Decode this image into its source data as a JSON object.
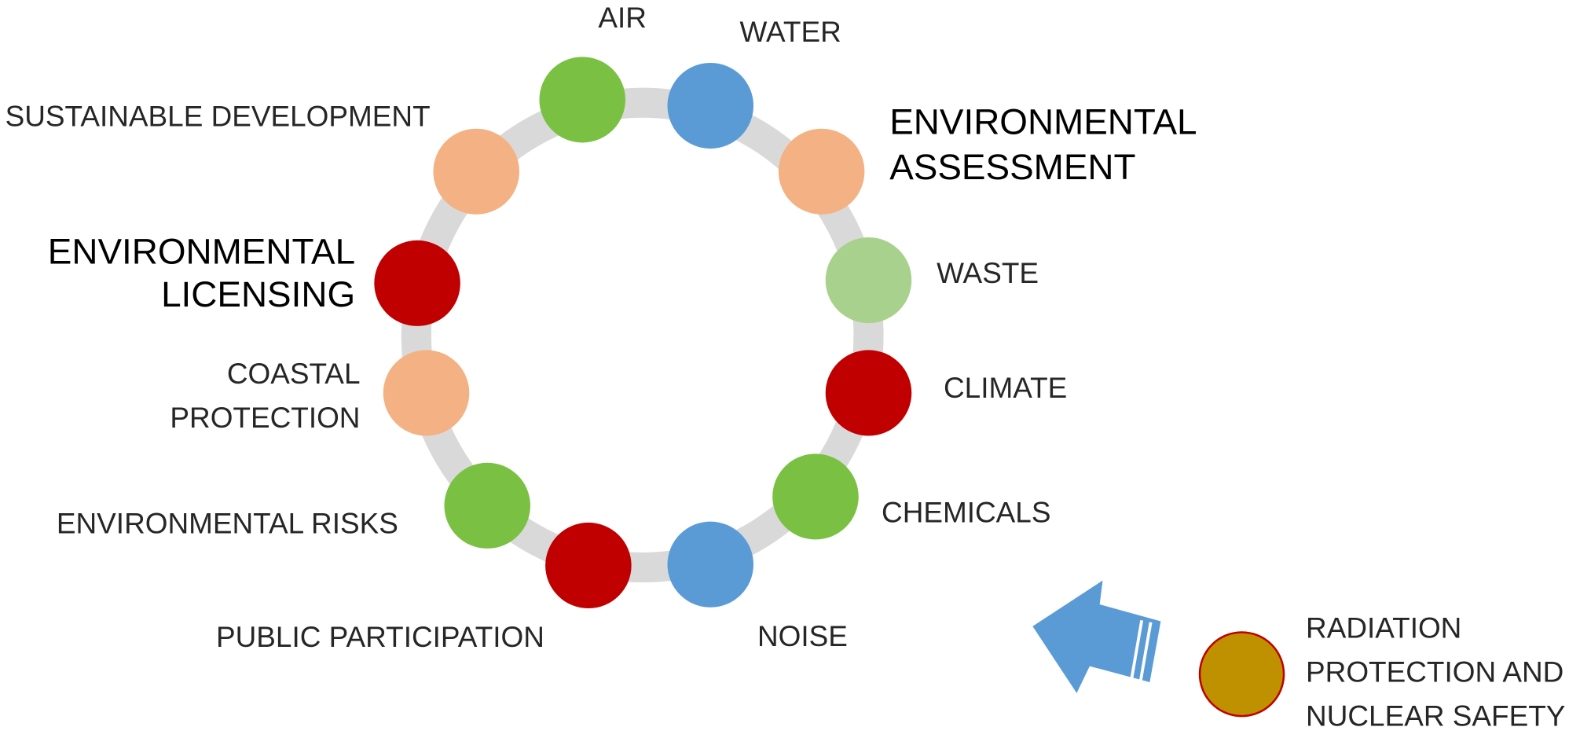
{
  "nodes": [
    {
      "lines": [
        "AIR"
      ],
      "color": "#7ac143"
    },
    {
      "lines": [
        "WATER"
      ],
      "color": "#5b9bd5"
    },
    {
      "lines": [
        "ENVIRONMENTAL",
        "ASSESSMENT"
      ],
      "color": "#f4b183"
    },
    {
      "lines": [
        "WASTE"
      ],
      "color": "#a9d18e"
    },
    {
      "lines": [
        "CLIMATE"
      ],
      "color": "#c00000"
    },
    {
      "lines": [
        "CHEMICALS"
      ],
      "color": "#7ac143"
    },
    {
      "lines": [
        "NOISE"
      ],
      "color": "#5b9bd5"
    },
    {
      "lines": [
        "PUBLIC PARTICIPATION"
      ],
      "color": "#c00000"
    },
    {
      "lines": [
        "ENVIRONMENTAL RISKS"
      ],
      "color": "#7ac143"
    },
    {
      "lines": [
        "COASTAL",
        "PROTECTION"
      ],
      "color": "#f4b183"
    },
    {
      "lines": [
        "ENVIRONMENTAL",
        "LICENSING"
      ],
      "color": "#c00000"
    },
    {
      "lines": [
        "SUSTAINABLE DEVELOPMENT"
      ],
      "color": "#f4b183"
    }
  ],
  "external": {
    "lines": [
      "RADIATION",
      "PROTECTION AND",
      "NUCLEAR SAFETY"
    ],
    "color": "#bf9000"
  }
}
